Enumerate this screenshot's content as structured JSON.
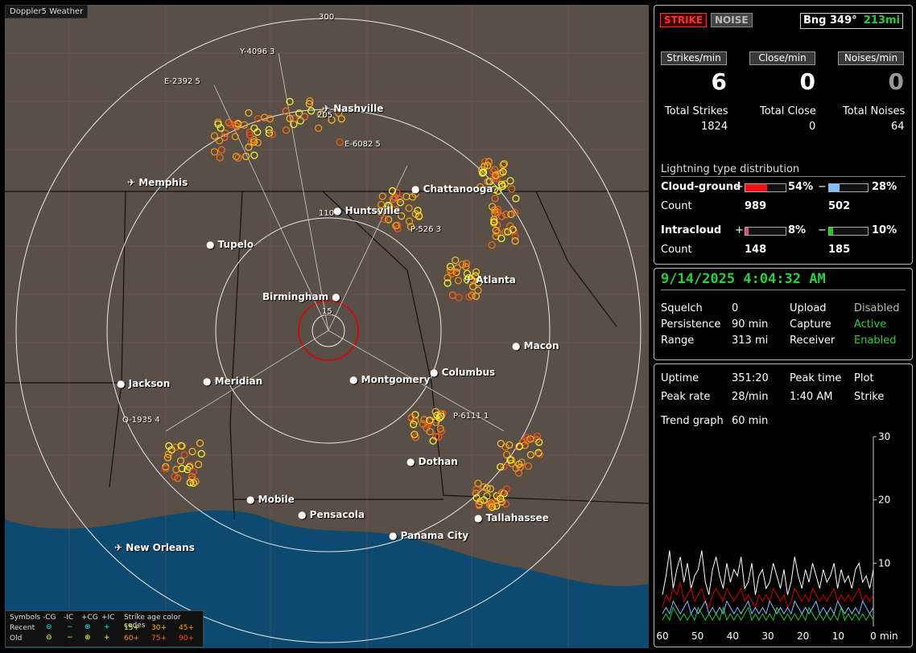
{
  "app": {
    "title": "Doppler5 Weather"
  },
  "map": {
    "range_labels": [
      "300",
      "205",
      "110",
      "15"
    ],
    "station_tags": [
      "Y-4096 3",
      "E-2392 5",
      "E-6082 5",
      "P-526 3",
      "Q-1935 4",
      "P-6111 1"
    ],
    "cities": [
      "Nashville",
      "Memphis",
      "Chattanooga",
      "Huntsville",
      "Tupelo",
      "Birmingham",
      "Atlanta",
      "Macon",
      "Jackson",
      "Meridian",
      "Montgomery",
      "Columbus",
      "Dothan",
      "Mobile",
      "Pensacola",
      "Panama City",
      "Tallahassee",
      "New Orleans"
    ],
    "legend": {
      "symbols": "Symbols",
      "cols": [
        "-CG",
        "-IC",
        "+CG",
        "+IC"
      ],
      "age_title": "Strike age color codes",
      "recent": "Recent",
      "old": "Old",
      "recent_codes": [
        "15+",
        "30+",
        "45+"
      ],
      "old_codes": [
        "60+",
        "75+",
        "90+"
      ]
    }
  },
  "status": {
    "strike_btn": "STRIKE",
    "noise_btn": "NOISE",
    "bearing": "Bng 349°",
    "distance": "213mi",
    "strikes_min_label": "Strikes/min",
    "close_min_label": "Close/min",
    "noises_min_label": "Noises/min",
    "strikes_min": "6",
    "close_min": "0",
    "noises_min": "0",
    "total_strikes_label": "Total Strikes",
    "total_close_label": "Total Close",
    "total_noises_label": "Total Noises",
    "total_strikes": "1824",
    "total_close": "0",
    "total_noises": "64"
  },
  "distribution": {
    "title": "Lightning type distribution",
    "cg_label": "Cloud-ground",
    "ic_label": "Intracloud",
    "count_label": "Count",
    "plus": "+",
    "minus": "−",
    "cg_pos_pct": "54%",
    "cg_neg_pct": "28%",
    "cg_pos_count": "989",
    "cg_neg_count": "502",
    "ic_pos_pct": "8%",
    "ic_neg_pct": "10%",
    "ic_pos_count": "148",
    "ic_neg_count": "185",
    "cg_pos_frac": 0.54,
    "cg_neg_frac": 0.28,
    "ic_pos_frac": 0.08,
    "ic_neg_frac": 0.1
  },
  "settings": {
    "datetime": "9/14/2025 4:04:32 AM",
    "squelch_label": "Squelch",
    "squelch": "0",
    "persistence_label": "Persistence",
    "persistence": "90 min",
    "range_label": "Range",
    "range": "313 mi",
    "upload_label": "Upload",
    "upload": "Disabled",
    "capture_label": "Capture",
    "capture": "Active",
    "receiver_label": "Receiver",
    "receiver": "Enabled"
  },
  "stats": {
    "uptime_label": "Uptime",
    "uptime": "351:20",
    "peak_time_label": "Peak time",
    "peak_time": "1:40 AM",
    "plot_label": "Plot",
    "plot": "Strike",
    "peak_rate_label": "Peak rate",
    "peak_rate": "28/min",
    "trend_label": "Trend graph",
    "trend_window": "60 min"
  },
  "chart_data": {
    "type": "line",
    "title": "",
    "xlabel": "min",
    "ylabel": "",
    "x_ticks": [
      "60",
      "50",
      "40",
      "30",
      "20",
      "10",
      "0"
    ],
    "y_ticks": [
      "30",
      "20",
      "10"
    ],
    "ylim": [
      0,
      30
    ],
    "xlim": [
      60,
      0
    ],
    "series": [
      {
        "color": "#ffffff",
        "values": [
          5,
          8,
          12,
          6,
          9,
          11,
          7,
          10,
          6,
          8,
          9,
          12,
          7,
          5,
          9,
          11,
          8,
          6,
          10,
          7,
          9,
          8,
          11,
          6,
          7,
          10,
          5,
          8,
          9,
          6,
          7,
          10,
          8,
          6,
          9,
          5,
          7,
          11,
          8,
          6,
          9,
          7,
          10,
          8,
          6,
          9,
          7,
          8,
          10,
          6,
          9,
          7,
          8,
          6,
          9,
          10,
          7,
          8,
          6,
          9
        ]
      },
      {
        "color": "#cc0000",
        "values": [
          3,
          5,
          4,
          6,
          5,
          7,
          4,
          5,
          6,
          4,
          5,
          6,
          4,
          3,
          5,
          6,
          5,
          4,
          6,
          5,
          4,
          5,
          6,
          4,
          5,
          4,
          3,
          5,
          4,
          5,
          4,
          6,
          5,
          4,
          5,
          3,
          4,
          6,
          5,
          4,
          5,
          4,
          6,
          5,
          4,
          5,
          4,
          5,
          6,
          4,
          5,
          4,
          5,
          4,
          5,
          6,
          4,
          5,
          4,
          5
        ]
      },
      {
        "color": "#1ecc1e",
        "values": [
          1,
          2,
          1,
          3,
          2,
          1,
          2,
          1,
          2,
          1,
          3,
          2,
          1,
          2,
          1,
          2,
          1,
          3,
          1,
          2,
          1,
          2,
          1,
          2,
          3,
          1,
          2,
          1,
          2,
          1,
          2,
          1,
          3,
          2,
          1,
          2,
          1,
          2,
          1,
          2,
          1,
          3,
          2,
          1,
          2,
          1,
          2,
          1,
          2,
          1,
          3,
          1,
          2,
          1,
          2,
          1,
          2,
          1,
          2,
          1
        ]
      },
      {
        "color": "#7fbfff",
        "values": [
          2,
          3,
          2,
          4,
          3,
          2,
          3,
          4,
          2,
          3,
          2,
          3,
          4,
          2,
          3,
          2,
          3,
          2,
          4,
          3,
          2,
          3,
          2,
          3,
          4,
          2,
          3,
          2,
          3,
          2,
          4,
          3,
          2,
          3,
          2,
          3,
          2,
          4,
          3,
          2,
          3,
          2,
          3,
          4,
          2,
          3,
          2,
          3,
          2,
          4,
          3,
          2,
          3,
          2,
          3,
          2,
          4,
          3,
          2,
          3
        ]
      }
    ]
  }
}
